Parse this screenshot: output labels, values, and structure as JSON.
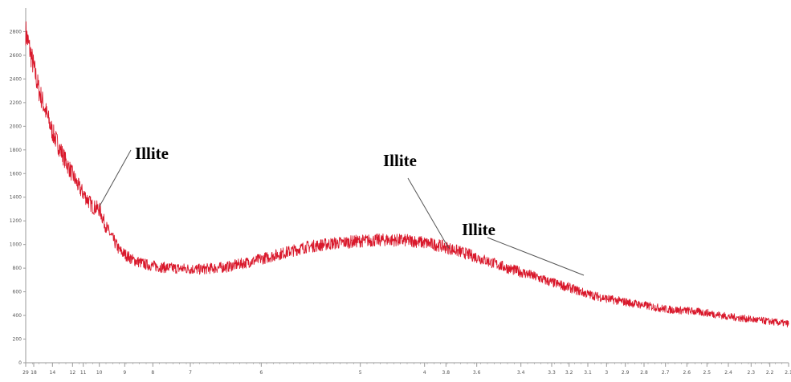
{
  "chart_data": {
    "type": "line",
    "title": "",
    "xlabel": "",
    "ylabel": "",
    "grid": false,
    "legend": "none",
    "colors": {
      "series": "#d9182b",
      "axis": "#9a9a9a",
      "leader": "#555555"
    },
    "xlim": [
      3,
      60
    ],
    "ylim": [
      0,
      3000
    ],
    "y_ticks": [
      {
        "value": 0,
        "label": "0"
      },
      {
        "value": 200,
        "label": "200"
      },
      {
        "value": 400,
        "label": "400"
      },
      {
        "value": 600,
        "label": "600"
      },
      {
        "value": 800,
        "label": "800"
      },
      {
        "value": 1000,
        "label": "1000"
      },
      {
        "value": 1200,
        "label": "1200"
      },
      {
        "value": 1400,
        "label": "1400"
      },
      {
        "value": 1600,
        "label": "1600"
      },
      {
        "value": 1800,
        "label": "1800"
      },
      {
        "value": 2000,
        "label": "2000"
      },
      {
        "value": 2200,
        "label": "2200"
      },
      {
        "value": 2400,
        "label": "2400"
      },
      {
        "value": 2600,
        "label": "2600"
      },
      {
        "value": 2800,
        "label": "2800"
      }
    ],
    "x_ticks": [
      {
        "value": 3.0,
        "label": "29"
      },
      {
        "value": 3.6,
        "label": "18"
      },
      {
        "value": 5.0,
        "label": "14"
      },
      {
        "value": 6.5,
        "label": "12"
      },
      {
        "value": 7.3,
        "label": "11"
      },
      {
        "value": 8.5,
        "label": "10"
      },
      {
        "value": 10.4,
        "label": "9"
      },
      {
        "value": 12.5,
        "label": "8"
      },
      {
        "value": 15.3,
        "label": "7"
      },
      {
        "value": 20.6,
        "label": "6"
      },
      {
        "value": 28.0,
        "label": "5"
      },
      {
        "value": 32.8,
        "label": "4"
      },
      {
        "value": 34.4,
        "label": "3.8"
      },
      {
        "value": 36.7,
        "label": "3.6"
      },
      {
        "value": 40.0,
        "label": "3.4"
      },
      {
        "value": 42.3,
        "label": "3.3"
      },
      {
        "value": 43.6,
        "label": "3.2"
      },
      {
        "value": 45.0,
        "label": "3.1"
      },
      {
        "value": 46.4,
        "label": "3"
      },
      {
        "value": 47.8,
        "label": "2.9"
      },
      {
        "value": 49.2,
        "label": "2.8"
      },
      {
        "value": 50.8,
        "label": "2.7"
      },
      {
        "value": 52.4,
        "label": "2.6"
      },
      {
        "value": 53.9,
        "label": "2.5"
      },
      {
        "value": 55.5,
        "label": "2.4"
      },
      {
        "value": 57.2,
        "label": "2.3"
      },
      {
        "value": 58.6,
        "label": "2.2"
      },
      {
        "value": 60.0,
        "label": "2.1"
      }
    ],
    "series": [
      {
        "x": [
          3,
          4,
          5,
          6,
          7,
          8,
          8.5,
          9,
          10,
          11,
          12,
          13,
          14,
          16,
          18,
          20,
          22,
          24,
          26,
          28,
          30,
          32,
          34,
          36,
          37.5,
          39,
          40.5,
          42,
          43.5,
          45,
          46.5,
          48,
          49.5,
          51,
          52.5,
          54,
          55.5,
          57,
          58.5,
          60
        ],
        "y": [
          2800,
          2300,
          1950,
          1700,
          1480,
          1320,
          1300,
          1150,
          950,
          870,
          830,
          810,
          800,
          790,
          810,
          860,
          920,
          980,
          1010,
          1030,
          1040,
          1030,
          990,
          920,
          860,
          800,
          750,
          690,
          640,
          580,
          540,
          510,
          480,
          450,
          440,
          420,
          390,
          370,
          350,
          330
        ]
      }
    ],
    "annotations": [
      {
        "text": "Illite",
        "x": 8.5,
        "y": 1320
      },
      {
        "text": "Illite",
        "x": 34.6,
        "y": 970
      },
      {
        "text": "Illite",
        "x": 44.7,
        "y": 740
      }
    ]
  }
}
